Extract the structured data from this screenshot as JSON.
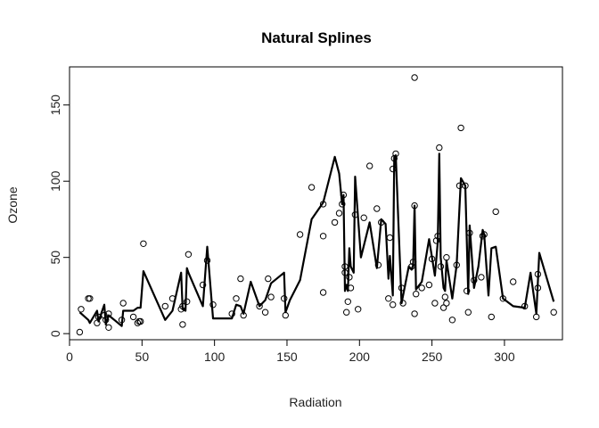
{
  "chart_data": {
    "type": "scatter",
    "title": "Natural Splines",
    "xlabel": "Radiation",
    "ylabel": "Ozone",
    "xlim": [
      0,
      340
    ],
    "ylim": [
      -4,
      175
    ],
    "x_ticks": [
      0,
      50,
      100,
      150,
      200,
      250,
      300
    ],
    "y_ticks": [
      0,
      50,
      100,
      150
    ],
    "grid": false,
    "points": [
      [
        7,
        1
      ],
      [
        8,
        16
      ],
      [
        13,
        23
      ],
      [
        14,
        23
      ],
      [
        19,
        7
      ],
      [
        20,
        11
      ],
      [
        24,
        12
      ],
      [
        25,
        9
      ],
      [
        27,
        4
      ],
      [
        27,
        13
      ],
      [
        36,
        9
      ],
      [
        37,
        20
      ],
      [
        44,
        11
      ],
      [
        47,
        7
      ],
      [
        48,
        8
      ],
      [
        49,
        8
      ],
      [
        51,
        59
      ],
      [
        66,
        18
      ],
      [
        71,
        23
      ],
      [
        77,
        16
      ],
      [
        78,
        6
      ],
      [
        78,
        18
      ],
      [
        81,
        21
      ],
      [
        82,
        52
      ],
      [
        92,
        32
      ],
      [
        95,
        48
      ],
      [
        99,
        19
      ],
      [
        112,
        13
      ],
      [
        115,
        23
      ],
      [
        118,
        36
      ],
      [
        120,
        12
      ],
      [
        131,
        18
      ],
      [
        135,
        14
      ],
      [
        137,
        36
      ],
      [
        139,
        24
      ],
      [
        148,
        23
      ],
      [
        149,
        12
      ],
      [
        159,
        65
      ],
      [
        167,
        96
      ],
      [
        175,
        64
      ],
      [
        175,
        85
      ],
      [
        175,
        27
      ],
      [
        183,
        73
      ],
      [
        186,
        79
      ],
      [
        188,
        85
      ],
      [
        189,
        91
      ],
      [
        190,
        40
      ],
      [
        190,
        44
      ],
      [
        191,
        14
      ],
      [
        192,
        21
      ],
      [
        193,
        37
      ],
      [
        194,
        30
      ],
      [
        197,
        78
      ],
      [
        199,
        16
      ],
      [
        203,
        76
      ],
      [
        207,
        110
      ],
      [
        212,
        82
      ],
      [
        213,
        45
      ],
      [
        215,
        73
      ],
      [
        220,
        23
      ],
      [
        221,
        63
      ],
      [
        223,
        19
      ],
      [
        223,
        108
      ],
      [
        224,
        115
      ],
      [
        225,
        118
      ],
      [
        229,
        30
      ],
      [
        230,
        20
      ],
      [
        236,
        44
      ],
      [
        237,
        47
      ],
      [
        238,
        84
      ],
      [
        238,
        168
      ],
      [
        238,
        13
      ],
      [
        239,
        26
      ],
      [
        243,
        30
      ],
      [
        248,
        32
      ],
      [
        250,
        49
      ],
      [
        252,
        20
      ],
      [
        253,
        61
      ],
      [
        254,
        64
      ],
      [
        255,
        122
      ],
      [
        256,
        44
      ],
      [
        258,
        17
      ],
      [
        259,
        24
      ],
      [
        260,
        20
      ],
      [
        260,
        50
      ],
      [
        264,
        9
      ],
      [
        267,
        45
      ],
      [
        269,
        97
      ],
      [
        270,
        135
      ],
      [
        273,
        97
      ],
      [
        274,
        28
      ],
      [
        275,
        14
      ],
      [
        276,
        66
      ],
      [
        279,
        35
      ],
      [
        284,
        37
      ],
      [
        285,
        64
      ],
      [
        286,
        65
      ],
      [
        291,
        11
      ],
      [
        294,
        80
      ],
      [
        299,
        23
      ],
      [
        306,
        34
      ],
      [
        314,
        18
      ],
      [
        322,
        11
      ],
      [
        323,
        30
      ],
      [
        323,
        39
      ],
      [
        334,
        14
      ]
    ],
    "fit_line": [
      [
        7,
        14
      ],
      [
        13,
        9
      ],
      [
        14,
        7
      ],
      [
        19,
        15
      ],
      [
        20,
        8
      ],
      [
        24,
        19
      ],
      [
        25,
        6
      ],
      [
        27,
        12
      ],
      [
        36,
        5
      ],
      [
        37,
        15
      ],
      [
        44,
        15
      ],
      [
        47,
        17
      ],
      [
        49,
        17
      ],
      [
        51,
        41
      ],
      [
        66,
        9
      ],
      [
        71,
        15
      ],
      [
        77,
        40
      ],
      [
        78,
        16
      ],
      [
        80,
        15
      ],
      [
        81,
        43
      ],
      [
        82,
        40
      ],
      [
        92,
        18
      ],
      [
        95,
        57
      ],
      [
        99,
        10
      ],
      [
        112,
        10
      ],
      [
        115,
        19
      ],
      [
        118,
        18
      ],
      [
        120,
        13
      ],
      [
        125,
        34
      ],
      [
        131,
        18
      ],
      [
        135,
        22
      ],
      [
        139,
        33
      ],
      [
        148,
        40
      ],
      [
        149,
        14
      ],
      [
        152,
        22
      ],
      [
        159,
        35
      ],
      [
        167,
        75
      ],
      [
        175,
        86
      ],
      [
        183,
        116
      ],
      [
        186,
        105
      ],
      [
        188,
        85
      ],
      [
        189,
        91
      ],
      [
        190,
        28
      ],
      [
        191,
        32
      ],
      [
        192,
        28
      ],
      [
        193,
        56
      ],
      [
        194,
        44
      ],
      [
        196,
        40
      ],
      [
        197,
        103
      ],
      [
        201,
        50
      ],
      [
        207,
        73
      ],
      [
        212,
        43
      ],
      [
        215,
        75
      ],
      [
        218,
        72
      ],
      [
        220,
        36
      ],
      [
        221,
        51
      ],
      [
        223,
        25
      ],
      [
        224,
        116
      ],
      [
        225,
        117
      ],
      [
        229,
        20
      ],
      [
        234,
        44
      ],
      [
        236,
        42
      ],
      [
        237,
        45
      ],
      [
        238,
        84
      ],
      [
        239,
        29
      ],
      [
        243,
        34
      ],
      [
        248,
        62
      ],
      [
        252,
        38
      ],
      [
        254,
        60
      ],
      [
        255,
        118
      ],
      [
        256,
        50
      ],
      [
        258,
        30
      ],
      [
        259,
        28
      ],
      [
        260,
        48
      ],
      [
        264,
        23
      ],
      [
        267,
        45
      ],
      [
        270,
        102
      ],
      [
        273,
        97
      ],
      [
        275,
        26
      ],
      [
        276,
        71
      ],
      [
        279,
        30
      ],
      [
        282,
        44
      ],
      [
        285,
        68
      ],
      [
        286,
        65
      ],
      [
        289,
        25
      ],
      [
        291,
        56
      ],
      [
        294,
        57
      ],
      [
        299,
        23
      ],
      [
        306,
        18
      ],
      [
        314,
        17
      ],
      [
        318,
        40
      ],
      [
        322,
        13
      ],
      [
        324,
        53
      ],
      [
        334,
        21
      ]
    ]
  }
}
